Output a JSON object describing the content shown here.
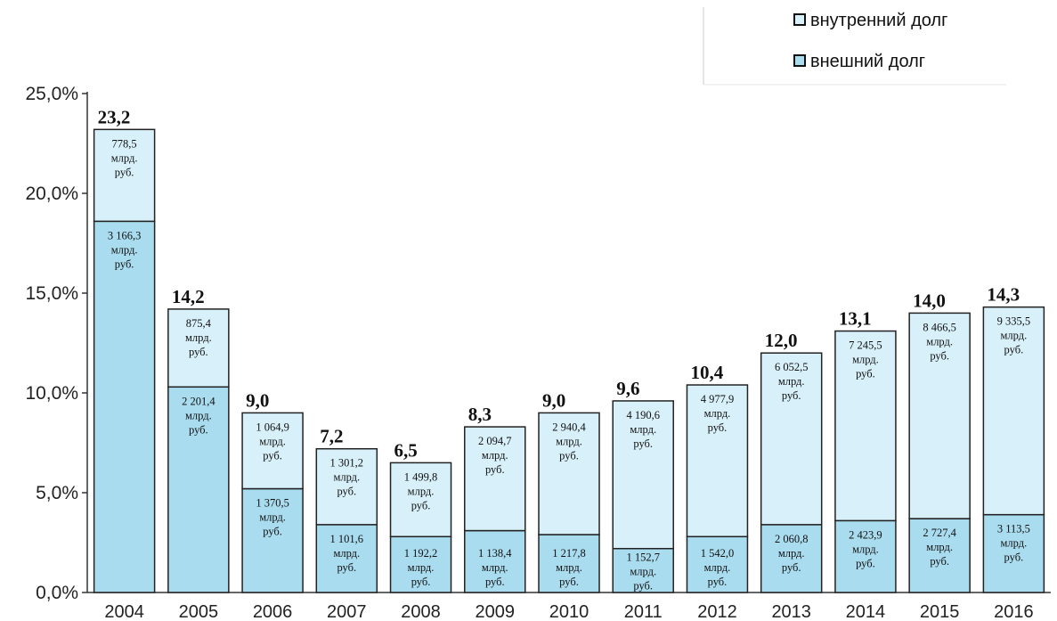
{
  "chart_data": {
    "type": "bar",
    "stacked": true,
    "title": "",
    "xlabel": "",
    "ylabel": "",
    "ylim": [
      0,
      25
    ],
    "yticks": [
      "0,0%",
      "5,0%",
      "10,0%",
      "15,0%",
      "20,0%",
      "25,0%"
    ],
    "grid": false,
    "legend_position": "top-right",
    "categories": [
      "2004",
      "2005",
      "2006",
      "2007",
      "2008",
      "2009",
      "2010",
      "2011",
      "2012",
      "2013",
      "2014",
      "2015",
      "2016"
    ],
    "totals_label": [
      "23,2",
      "14,2",
      "9,0",
      "7,2",
      "6,5",
      "8,3",
      "9,0",
      "9,6",
      "10,4",
      "12,0",
      "13,1",
      "14,0",
      "14,3"
    ],
    "series": [
      {
        "name": "внешний долг",
        "color": "#a9dcee",
        "values": [
          18.6,
          10.3,
          5.2,
          3.4,
          2.8,
          3.1,
          2.9,
          2.2,
          2.8,
          3.4,
          3.6,
          3.7,
          3.9
        ],
        "labels": [
          "3 166,3 млрд. руб.",
          "2 201,4 млрд. руб.",
          "1 370,5 млрд. руб.",
          "1 101,6 млрд. руб.",
          "1 192,2 млрд. руб.",
          "1 138,4 млрд. руб.",
          "1 217,8 млрд. руб.",
          "1 152,7 млрд. руб.",
          "1 542,0 млрд. руб.",
          "2 060,8 млрд. руб.",
          "2 423,9 млрд. руб.",
          "2 727,4 млрд. руб.",
          "3 113,5 млрд. руб."
        ]
      },
      {
        "name": "внутренний долг",
        "color": "#d8f0f9",
        "values": [
          4.6,
          3.9,
          3.8,
          3.8,
          3.7,
          5.2,
          6.1,
          7.4,
          7.6,
          8.6,
          9.5,
          10.3,
          10.4
        ],
        "labels": [
          "778,5 млрд. руб.",
          "875,4 млрд. руб.",
          "1 064,9 млрд. руб.",
          "1 301,2 млрд. руб.",
          "1 499,8 млрд. руб.",
          "2 094,7 млрд. руб.",
          "2 940,4 млрд. руб.",
          "4 190,6 млрд. руб.",
          "4 977,9 млрд. руб.",
          "6 052,5 млрд. руб.",
          "7 245,5 млрд. руб.",
          "8 466,5 млрд. руб.",
          "9 335,5 млрд. руб."
        ]
      }
    ]
  },
  "legend": {
    "items": [
      {
        "label": "внутренний долг",
        "color": "#d8f0f9"
      },
      {
        "label": "внешний долг",
        "color": "#a9dcee"
      }
    ]
  }
}
